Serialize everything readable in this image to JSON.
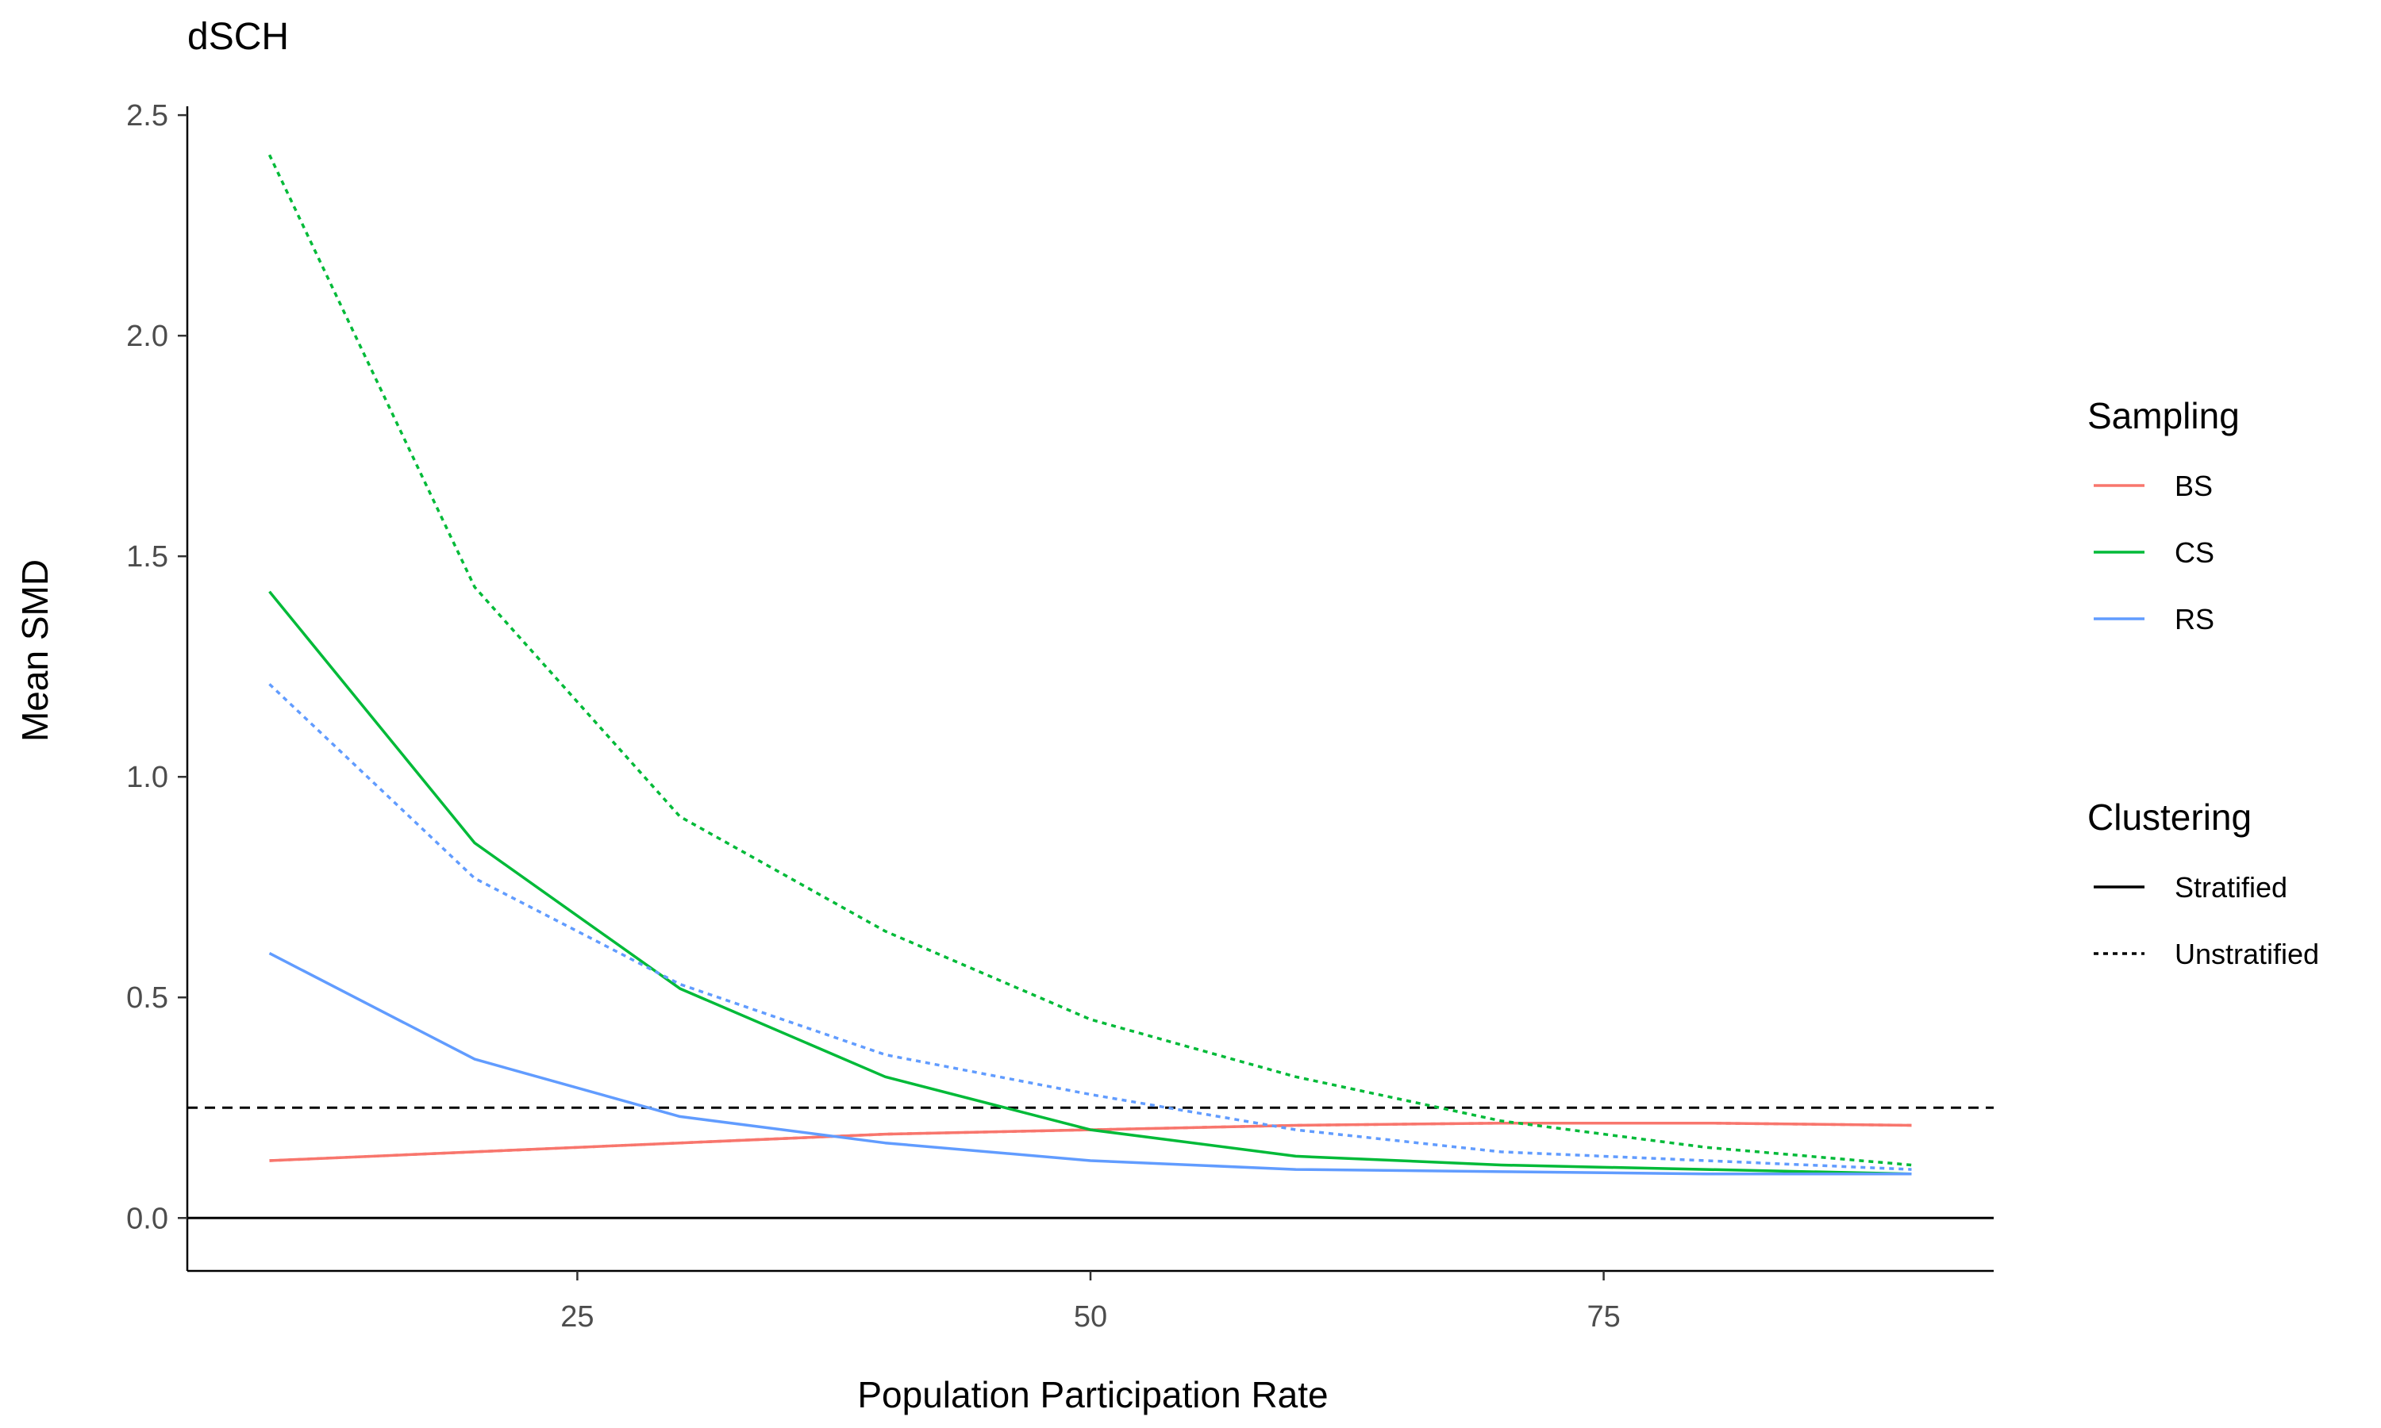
{
  "chart_data": {
    "type": "line",
    "title": "dSCH",
    "xlabel": "Population Participation Rate",
    "ylabel": "Mean SMD",
    "xlim": [
      6,
      94
    ],
    "ylim": [
      -0.12,
      2.52
    ],
    "xticks": [
      25,
      50,
      75
    ],
    "xtick_labels": [
      "25",
      "50",
      "75"
    ],
    "yticks": [
      0.0,
      0.5,
      1.0,
      1.5,
      2.0,
      2.5
    ],
    "ytick_labels": [
      "0.0",
      "0.5",
      "1.0",
      "1.5",
      "2.0",
      "2.5"
    ],
    "grid": false,
    "reference_lines": [
      {
        "y": 0.0,
        "style": "solid"
      },
      {
        "y": 0.25,
        "style": "dashed"
      }
    ],
    "x": [
      10,
      20,
      30,
      40,
      50,
      60,
      70,
      80,
      90
    ],
    "series": [
      {
        "name": "BS",
        "clustering": "Stratified",
        "color": "#F8766D",
        "dash": false,
        "values": [
          0.13,
          0.15,
          0.17,
          0.19,
          0.2,
          0.21,
          0.215,
          0.215,
          0.21
        ]
      },
      {
        "name": "BS",
        "clustering": "Unstratified",
        "color": "#F8766D",
        "dash": true,
        "values": [
          0.13,
          0.15,
          0.17,
          0.19,
          0.2,
          0.21,
          0.215,
          0.215,
          0.21
        ]
      },
      {
        "name": "CS",
        "clustering": "Stratified",
        "color": "#00BA38",
        "dash": false,
        "values": [
          1.42,
          0.85,
          0.52,
          0.32,
          0.2,
          0.14,
          0.12,
          0.11,
          0.1
        ]
      },
      {
        "name": "CS",
        "clustering": "Unstratified",
        "color": "#00BA38",
        "dash": true,
        "values": [
          2.41,
          1.43,
          0.91,
          0.65,
          0.45,
          0.32,
          0.22,
          0.16,
          0.12
        ]
      },
      {
        "name": "RS",
        "clustering": "Stratified",
        "color": "#619CFF",
        "dash": false,
        "values": [
          0.6,
          0.36,
          0.23,
          0.17,
          0.13,
          0.11,
          0.105,
          0.1,
          0.1
        ]
      },
      {
        "name": "RS",
        "clustering": "Unstratified",
        "color": "#619CFF",
        "dash": true,
        "values": [
          1.21,
          0.77,
          0.53,
          0.37,
          0.28,
          0.2,
          0.15,
          0.13,
          0.11
        ]
      }
    ],
    "legends": [
      {
        "title": "Sampling",
        "placement": "right",
        "entries": [
          {
            "label": "BS",
            "color": "#F8766D",
            "dash": false
          },
          {
            "label": "CS",
            "color": "#00BA38",
            "dash": false
          },
          {
            "label": "RS",
            "color": "#619CFF",
            "dash": false
          }
        ]
      },
      {
        "title": "Clustering",
        "placement": "right",
        "entries": [
          {
            "label": "Stratified",
            "color": "#000000",
            "dash": false
          },
          {
            "label": "Unstratified",
            "color": "#000000",
            "dash": true
          }
        ]
      }
    ]
  }
}
